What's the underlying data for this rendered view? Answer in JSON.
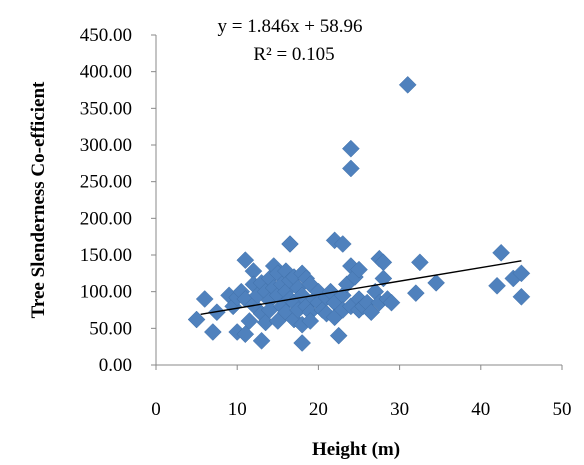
{
  "chart_data": {
    "type": "scatter",
    "title": "",
    "xlabel": "Height (m)",
    "ylabel": "Tree Slenderness Co-efficient",
    "xlim": [
      0,
      50
    ],
    "ylim": [
      0,
      450
    ],
    "x_ticks": [
      "0",
      "10",
      "20",
      "30",
      "40",
      "50"
    ],
    "y_ticks": [
      "0.00",
      "50.00",
      "100.00",
      "150.00",
      "200.00",
      "250.00",
      "300.00",
      "350.00",
      "400.00",
      "450.00"
    ],
    "grid": false,
    "legend": "none",
    "marker": "diamond",
    "marker_color": "#4F81BD",
    "trendline": {
      "type": "linear",
      "slope": 1.846,
      "intercept": 58.96,
      "x_range": [
        5.5,
        45
      ],
      "equation": "y = 1.846x + 58.96",
      "r_squared": "R² = 0.105",
      "color": "#000000"
    },
    "series": [
      {
        "points": [
          [
            5,
            62
          ],
          [
            6,
            90
          ],
          [
            7,
            45
          ],
          [
            7.5,
            72
          ],
          [
            9,
            95
          ],
          [
            9.5,
            80
          ],
          [
            10,
            45
          ],
          [
            10,
            92
          ],
          [
            10.5,
            100
          ],
          [
            11,
            143
          ],
          [
            11,
            42
          ],
          [
            11,
            90
          ],
          [
            11.5,
            60
          ],
          [
            12,
            128
          ],
          [
            12,
            82
          ],
          [
            12,
            110
          ],
          [
            12.5,
            95
          ],
          [
            13,
            33
          ],
          [
            13,
            70
          ],
          [
            13,
            112
          ],
          [
            13.5,
            100
          ],
          [
            13.5,
            58
          ],
          [
            14,
            118
          ],
          [
            14,
            88
          ],
          [
            14,
            75
          ],
          [
            14.5,
            135
          ],
          [
            14.5,
            105
          ],
          [
            15,
            125
          ],
          [
            15,
            95
          ],
          [
            15,
            60
          ],
          [
            15.5,
            80
          ],
          [
            15.5,
            110
          ],
          [
            16,
            128
          ],
          [
            16,
            100
          ],
          [
            16,
            72
          ],
          [
            16.5,
            165
          ],
          [
            16.5,
            115
          ],
          [
            16.5,
            90
          ],
          [
            17,
            120
          ],
          [
            17,
            85
          ],
          [
            17,
            62
          ],
          [
            17.5,
            105
          ],
          [
            17.5,
            75
          ],
          [
            18,
            125
          ],
          [
            18,
            95
          ],
          [
            18,
            30
          ],
          [
            18,
            55
          ],
          [
            18.5,
            118
          ],
          [
            18.5,
            80
          ],
          [
            19,
            110
          ],
          [
            19,
            72
          ],
          [
            19,
            60
          ],
          [
            19.5,
            90
          ],
          [
            20,
            100
          ],
          [
            20,
            85
          ],
          [
            20.5,
            75
          ],
          [
            21,
            92
          ],
          [
            21,
            70
          ],
          [
            21.5,
            100
          ],
          [
            22,
            170
          ],
          [
            22,
            85
          ],
          [
            22,
            65
          ],
          [
            22.5,
            40
          ],
          [
            23,
            165
          ],
          [
            23,
            95
          ],
          [
            23,
            75
          ],
          [
            23.5,
            110
          ],
          [
            24,
            295
          ],
          [
            24,
            268
          ],
          [
            24,
            135
          ],
          [
            24,
            80
          ],
          [
            24.5,
            120
          ],
          [
            25,
            130
          ],
          [
            25,
            90
          ],
          [
            25,
            75
          ],
          [
            25.5,
            80
          ],
          [
            26,
            85
          ],
          [
            26.5,
            72
          ],
          [
            27,
            100
          ],
          [
            27.5,
            145
          ],
          [
            27.5,
            85
          ],
          [
            28,
            140
          ],
          [
            28,
            118
          ],
          [
            28.5,
            90
          ],
          [
            29,
            85
          ],
          [
            31,
            382
          ],
          [
            32,
            98
          ],
          [
            32.5,
            140
          ],
          [
            34.5,
            112
          ],
          [
            42,
            108
          ],
          [
            42.5,
            153
          ],
          [
            44,
            118
          ],
          [
            45,
            125
          ],
          [
            45,
            93
          ]
        ]
      }
    ]
  }
}
